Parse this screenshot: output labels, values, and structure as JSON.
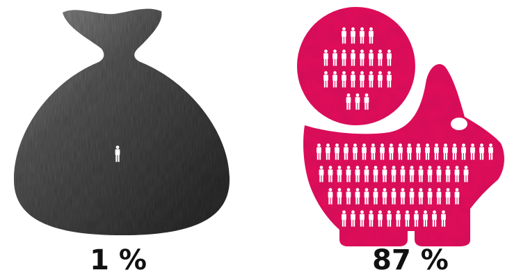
{
  "left_panel": {
    "percent_label": "1 %",
    "people_count": 1,
    "icon": "money-bag-icon",
    "fill_color": "#5c5c5c"
  },
  "right_panel": {
    "percent_label": "87 %",
    "people_count": 87,
    "icon": "piggy-bank-icon",
    "coin_icon": "coin-icon",
    "fill_color": "#e4145a"
  },
  "person_icon": "person-icon",
  "person_color": "#ffffff",
  "text_color": "#111111"
}
